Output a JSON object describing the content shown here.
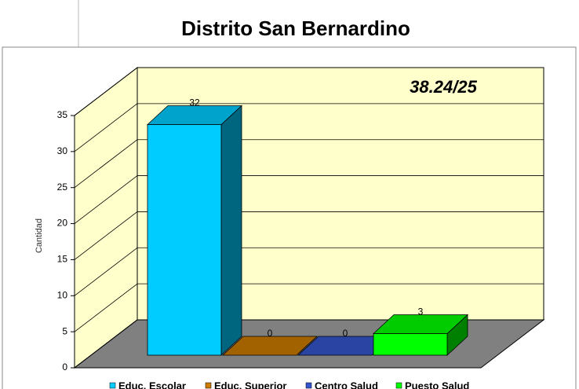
{
  "chart_data": {
    "type": "bar3d",
    "title": "Distrito San Bernardino",
    "annotation": "38.24/25",
    "y_label": "Cantidad",
    "series": [
      {
        "name": "Educ. Escolar",
        "color": "#00ccff",
        "values": [
          32
        ]
      },
      {
        "name": "Educ. Superior",
        "color": "#cc7a00",
        "values": [
          0
        ]
      },
      {
        "name": "Centro Salud",
        "color": "#3355cc",
        "values": [
          0
        ]
      },
      {
        "name": "Puesto Salud",
        "color": "#00ff00",
        "values": [
          3
        ]
      }
    ],
    "ylim": [
      0,
      35
    ],
    "yticks": [
      0,
      5,
      10,
      15,
      20,
      25,
      30,
      35
    ],
    "grid": true
  }
}
